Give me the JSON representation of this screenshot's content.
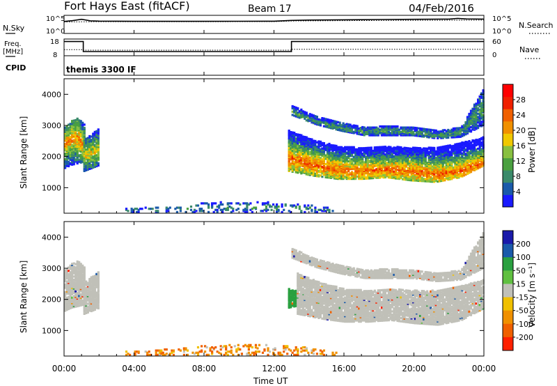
{
  "header": {
    "station": "Fort Hays East (fitACF)",
    "beam": "Beam 17",
    "date": "04/Feb/2016"
  },
  "labels": {
    "nsky": "N.Sky",
    "nsearch": "N.Search",
    "freq_line1": "Freq.",
    "freq_line2": "[MHz]",
    "nave": "Nave",
    "cpid": "CPID",
    "program": "themis 3300 IF",
    "noise_max": "10^5",
    "noise_min": "10^0",
    "freq_max": "18",
    "freq_min": "8",
    "nave_max": "60",
    "nave_min": "0",
    "range_ylabel": "Slant Range [km]",
    "xlabel": "Time UT",
    "power_label": "Power [dB]",
    "velocity_label": "Velocity [m s⁻¹]"
  },
  "colors": {
    "power_scale": [
      "#1a1aff",
      "#1a5aaa",
      "#3a8a6a",
      "#4aa040",
      "#88c040",
      "#f0c800",
      "#f09000",
      "#f06000",
      "#f02000",
      "#ff0000"
    ],
    "velocity_scale": [
      "#1a1aaa",
      "#1a5aaa",
      "#2aa040",
      "#60c040",
      "#c0c0b8",
      "#f0c000",
      "#f09000",
      "#f06000",
      "#ff2000"
    ],
    "ground": "#c0c0b8"
  },
  "chart_data": [
    {
      "type": "line",
      "name": "noise-panel",
      "x_range": [
        0,
        24
      ],
      "y_scale": "log",
      "ylim": [
        1,
        100000
      ],
      "series": [
        {
          "name": "N.Sky",
          "style": "solid",
          "x": [
            0,
            0.5,
            1,
            1.5,
            2,
            4,
            6,
            8,
            10,
            12,
            13,
            14,
            16,
            18,
            20,
            22,
            22.5,
            23,
            24
          ],
          "y": [
            2000,
            3500,
            8000,
            3000,
            2500,
            2200,
            2200,
            2200,
            2300,
            2400,
            4000,
            5000,
            6000,
            7000,
            8000,
            9000,
            14000,
            10000,
            9000
          ]
        },
        {
          "name": "N.Search",
          "style": "dotted",
          "x": [
            0,
            2,
            4,
            8,
            12,
            13,
            16,
            20,
            24
          ],
          "y": [
            1500,
            1800,
            1800,
            1800,
            1900,
            2800,
            3500,
            4200,
            4800
          ]
        }
      ]
    },
    {
      "type": "line",
      "name": "frequency-panel",
      "x_range": [
        0,
        24
      ],
      "ylim": [
        8,
        18
      ],
      "y2lim": [
        0,
        60
      ],
      "series": [
        {
          "name": "Freq.",
          "style": "solid",
          "x": [
            0,
            1.1,
            1.1,
            13,
            13,
            24
          ],
          "y": [
            16.5,
            16.5,
            10.5,
            10.5,
            16.5,
            16.5
          ]
        },
        {
          "name": "Nave",
          "style": "dotted",
          "axis": "right",
          "x": [
            0,
            1.1,
            1.1,
            13,
            13,
            24
          ],
          "y": [
            22,
            22,
            20,
            20,
            23,
            23
          ]
        }
      ]
    },
    {
      "type": "heatmap",
      "name": "power-panel",
      "x_range": [
        0,
        24
      ],
      "ylim": [
        180,
        4500
      ],
      "y_ticks": [
        1000,
        2000,
        3000,
        4000
      ],
      "colorbar_ticks": [
        4,
        8,
        12,
        16,
        20,
        24,
        28
      ],
      "colorbar_range": [
        0,
        32
      ],
      "regions": [
        {
          "t0": 0.0,
          "t1": 1.1,
          "r_low": [
            1600,
            1700,
            1750,
            1800
          ],
          "r_high": [
            2900,
            3100,
            3200,
            3000
          ],
          "peak": [
            2400,
            2500,
            2600,
            2300
          ],
          "power": 22
        },
        {
          "t0": 1.1,
          "t1": 2.0,
          "r_low": [
            1500,
            1600,
            1700
          ],
          "r_high": [
            2500,
            2700,
            2900
          ],
          "peak": [
            2000,
            2100,
            2200
          ],
          "power": 18
        },
        {
          "t0": 12.8,
          "t1": 24.0,
          "r_low": [
            1500,
            1350,
            1250,
            1250,
            1300,
            1200,
            1150,
            1300,
            1700
          ],
          "r_high": [
            2800,
            2500,
            2300,
            2250,
            2300,
            2250,
            2250,
            2400,
            2600
          ],
          "peak": [
            1900,
            1700,
            1550,
            1500,
            1550,
            1500,
            1400,
            1500,
            1800
          ],
          "power": 24
        },
        {
          "t0": 13.0,
          "t1": 24.0,
          "r_low": [
            3300,
            3000,
            2800,
            2650,
            2650,
            2650,
            2550,
            2600,
            3000
          ],
          "r_high": [
            3600,
            3250,
            3050,
            2900,
            2950,
            2900,
            2800,
            2900,
            4200
          ],
          "peak": [
            3400,
            3100,
            2900,
            2750,
            2800,
            2750,
            2650,
            2750,
            3600
          ],
          "power": 10
        },
        {
          "t0": 3.5,
          "t1": 15.5,
          "r_low": [
            180,
            180,
            180,
            180,
            180,
            180,
            180
          ],
          "r_high": [
            300,
            350,
            450,
            520,
            500,
            450,
            300
          ],
          "peak": [
            240,
            260,
            300,
            330,
            320,
            300,
            240
          ],
          "power": 9,
          "sparse": true
        }
      ]
    },
    {
      "type": "heatmap",
      "name": "velocity-panel",
      "x_range": [
        0,
        24
      ],
      "ylim": [
        180,
        4500
      ],
      "y_ticks": [
        1000,
        2000,
        3000,
        4000
      ],
      "colorbar_ticks": [
        200,
        100,
        50,
        15,
        -15,
        -50,
        -100,
        -200
      ],
      "regions": [
        {
          "t0": 0.0,
          "t1": 1.1,
          "r_low": [
            1600,
            1700,
            1750,
            1800
          ],
          "r_high": [
            2900,
            3100,
            3200,
            3000
          ],
          "velocity": 0
        },
        {
          "t0": 1.1,
          "t1": 2.0,
          "r_low": [
            1500,
            1600,
            1700
          ],
          "r_high": [
            2500,
            2700,
            2900
          ],
          "velocity": 0
        },
        {
          "t0": 12.8,
          "t1": 13.6,
          "r_low": [
            1700,
            1750,
            1800
          ],
          "r_high": [
            2300,
            2250,
            2200
          ],
          "velocity": 40
        },
        {
          "t0": 13.3,
          "t1": 24.0,
          "r_low": [
            1500,
            1350,
            1250,
            1250,
            1300,
            1200,
            1150,
            1300,
            1700
          ],
          "r_high": [
            2800,
            2500,
            2300,
            2250,
            2300,
            2250,
            2250,
            2400,
            2600
          ],
          "velocity": 0
        },
        {
          "t0": 13.0,
          "t1": 24.0,
          "r_low": [
            3300,
            3000,
            2800,
            2650,
            2650,
            2650,
            2550,
            2600,
            3000
          ],
          "r_high": [
            3600,
            3250,
            3050,
            2900,
            2950,
            2900,
            2800,
            2900,
            4200
          ],
          "velocity": 0
        },
        {
          "t0": 3.5,
          "t1": 15.5,
          "r_low": [
            180,
            180,
            180,
            180,
            180,
            180,
            180
          ],
          "r_high": [
            300,
            350,
            450,
            520,
            500,
            450,
            300
          ],
          "velocity": -60,
          "sparse": true
        }
      ]
    }
  ],
  "x_ticks": [
    "00:00",
    "04:00",
    "08:00",
    "12:00",
    "16:00",
    "20:00",
    "00:00"
  ]
}
